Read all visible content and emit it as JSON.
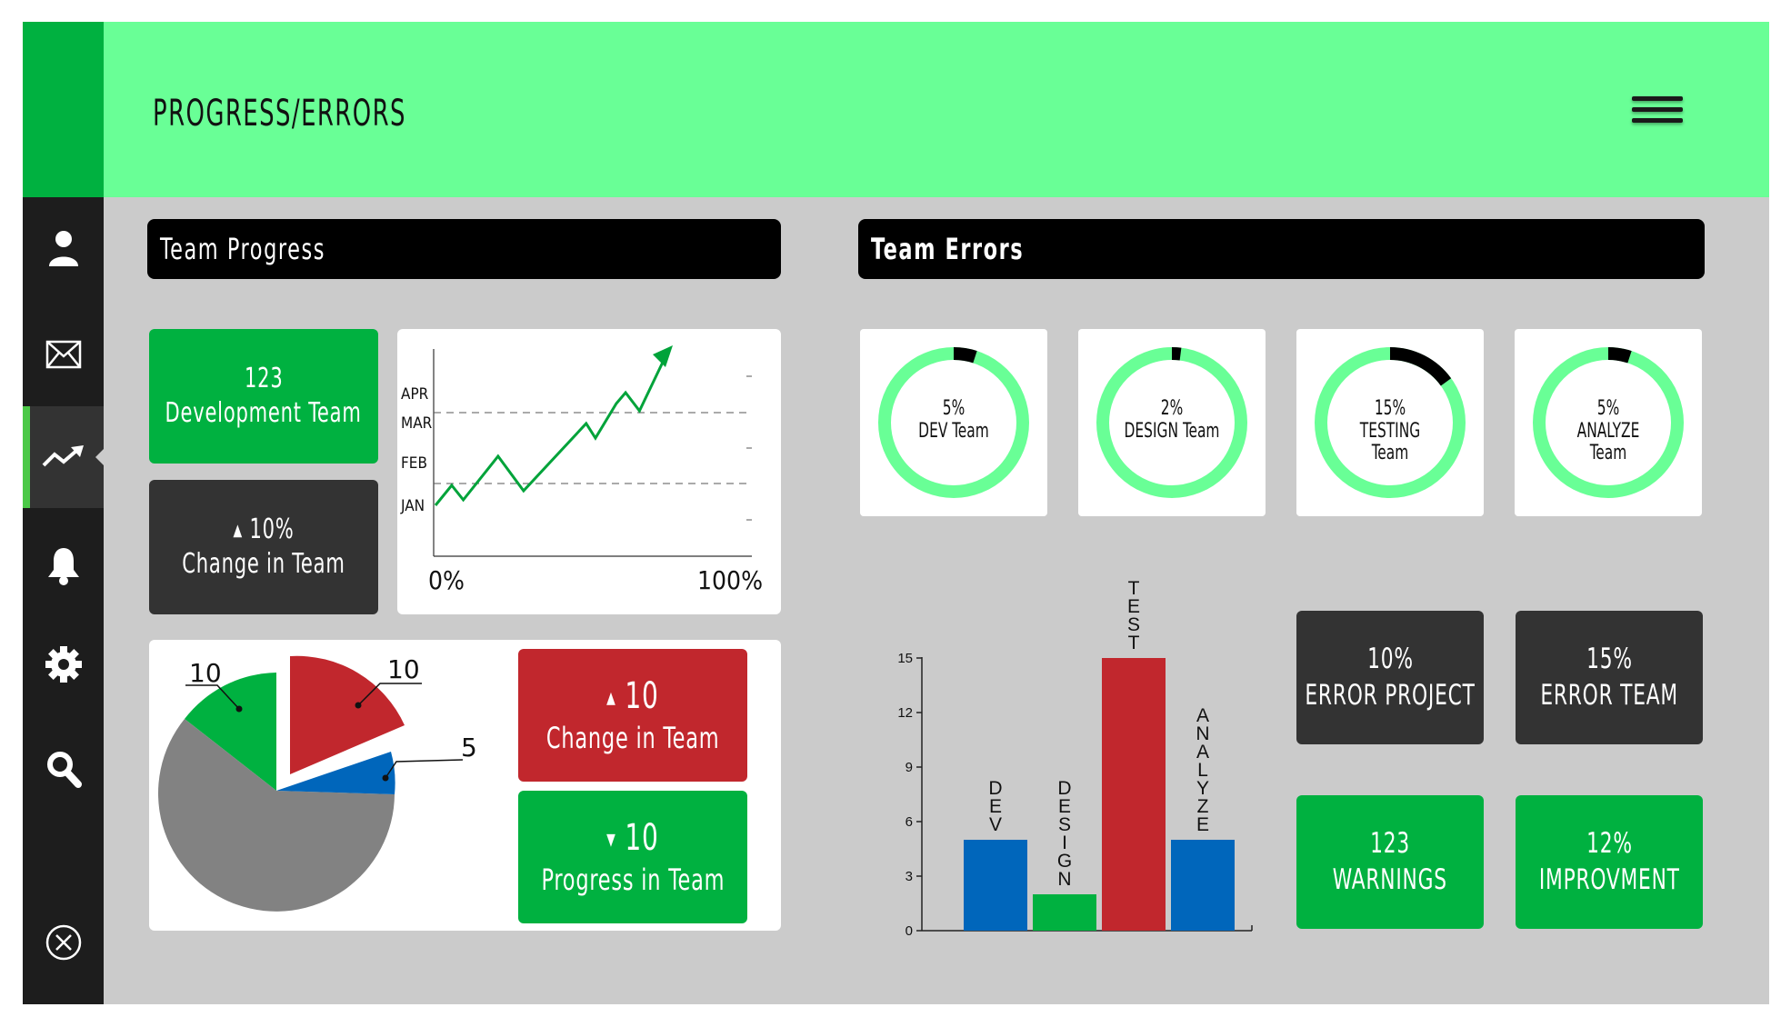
{
  "header": {
    "title": "PROGRESS/ERRORS"
  },
  "sidebar": {
    "items": [
      {
        "icon": "user-icon"
      },
      {
        "icon": "mail-icon"
      },
      {
        "icon": "trend-icon",
        "active": true
      },
      {
        "icon": "bell-icon"
      },
      {
        "icon": "gear-icon"
      },
      {
        "icon": "search-icon"
      }
    ],
    "footer_icon": "close-icon"
  },
  "team_progress": {
    "title": "Team Progress",
    "dev_tile": {
      "value": "123",
      "label": "Development Team"
    },
    "change_tile": {
      "value": "10%",
      "label": "Change in Team",
      "direction": "up"
    },
    "line_chart": {
      "type": "line",
      "y_labels": [
        "APR",
        "MAR",
        "FEB",
        "JAN"
      ],
      "x_start": "0%",
      "x_end": "100%"
    },
    "pie_chart": {
      "type": "pie",
      "labels": [
        "10",
        "10",
        "5"
      ]
    },
    "change_red": {
      "value": "10",
      "label": "Change in Team",
      "direction": "up"
    },
    "progress_green": {
      "value": "10",
      "label": "Progress in Team",
      "direction": "down"
    }
  },
  "team_errors": {
    "title": "Team Errors",
    "gauges": [
      {
        "percent": "5%",
        "label": "DEV Team",
        "fraction": 0.05
      },
      {
        "percent": "2%",
        "label": "DESIGN Team",
        "fraction": 0.02
      },
      {
        "percent": "15%",
        "label": "TESTING",
        "label2": "Team",
        "fraction": 0.15
      },
      {
        "percent": "5%",
        "label": "ANALYZE",
        "label2": "Team",
        "fraction": 0.05
      }
    ],
    "tiles": [
      {
        "value": "10%",
        "label": "ERROR PROJECT"
      },
      {
        "value": "15%",
        "label": "ERROR TEAM"
      },
      {
        "value": "123",
        "label": "WARNINGS"
      },
      {
        "value": "12%",
        "label": "IMPROVMENT"
      }
    ]
  },
  "chart_data": [
    {
      "type": "line",
      "x_start_label": "0%",
      "x_end_label": "100%",
      "y_tick_labels": [
        "JAN",
        "FEB",
        "MAR",
        "APR"
      ],
      "points_relative": [
        [
          0.0,
          0.02
        ],
        [
          0.07,
          0.13
        ],
        [
          0.12,
          0.05
        ],
        [
          0.27,
          0.29
        ],
        [
          0.38,
          0.1
        ],
        [
          0.65,
          0.47
        ],
        [
          0.69,
          0.39
        ],
        [
          0.78,
          0.58
        ],
        [
          0.82,
          0.64
        ],
        [
          0.88,
          0.54
        ],
        [
          1.0,
          0.86
        ]
      ],
      "color": "#00a33a",
      "grid": "dashed horizontal"
    },
    {
      "type": "pie",
      "slices": [
        {
          "label": "10",
          "value": 10,
          "color": "#00b140"
        },
        {
          "label": "10",
          "value": 10,
          "color": "#c1272d",
          "exploded": true
        },
        {
          "label": "5",
          "value": 5,
          "color": "#0066bb"
        },
        {
          "label": "",
          "value": 31,
          "color": "#828282"
        }
      ]
    },
    {
      "type": "bar",
      "categories": [
        "DEV",
        "DESIGN",
        "TEST",
        "ANALYZE"
      ],
      "values": [
        5,
        2,
        15,
        5
      ],
      "colors": [
        "#0066bb",
        "#00b140",
        "#c1272d",
        "#0066bb"
      ],
      "y_ticks": [
        0,
        3,
        6,
        9,
        12,
        15
      ],
      "ylim": [
        0,
        15
      ]
    }
  ]
}
